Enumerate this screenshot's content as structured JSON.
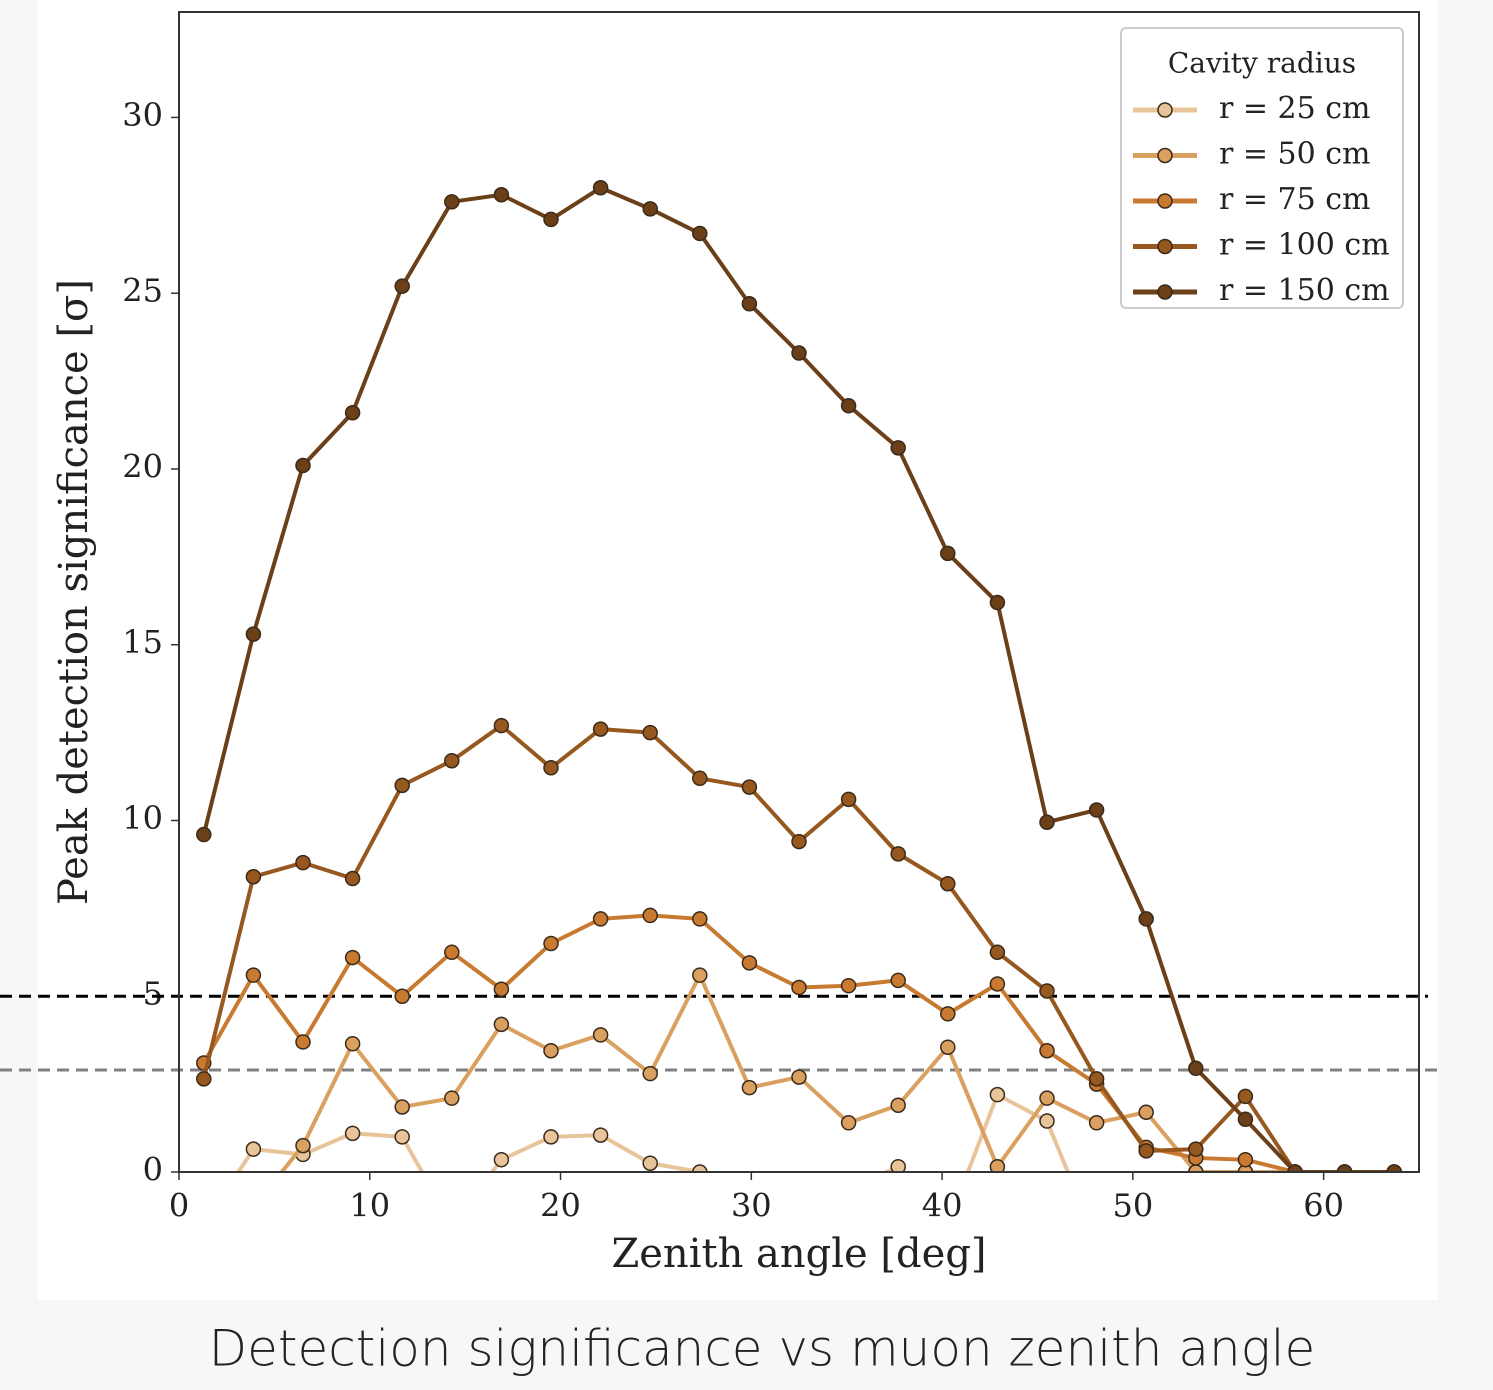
{
  "chart_data": {
    "type": "line",
    "caption": "Detection significance vs muon zenith angle",
    "xlabel": "Zenith angle [deg]",
    "ylabel": "Peak detection significance [σ]",
    "x": [
      1.3,
      3.9,
      6.5,
      9.1,
      11.7,
      14.3,
      16.9,
      19.5,
      22.1,
      24.7,
      27.3,
      29.9,
      32.5,
      35.1,
      37.7,
      40.3,
      42.9,
      45.5,
      48.1,
      50.7,
      53.3,
      55.9,
      58.5,
      61.1,
      63.7
    ],
    "series": [
      {
        "name": "r = 25 cm",
        "color": "#e8c49a",
        "values": [
          -1.5,
          0.65,
          0.5,
          1.1,
          1.0,
          -1.5,
          0.35,
          1.0,
          1.05,
          0.25,
          0.0,
          -0.5,
          -1.0,
          -0.5,
          0.15,
          -1.5,
          2.2,
          1.45,
          -2.0,
          -1.0,
          0.0,
          0.0,
          0.0,
          0.0,
          0.0
        ]
      },
      {
        "name": "r = 50 cm",
        "color": "#d9a060",
        "values": [
          -2.0,
          -1.0,
          0.75,
          3.65,
          1.85,
          2.1,
          4.2,
          3.45,
          3.9,
          2.8,
          5.6,
          2.4,
          2.7,
          1.4,
          1.9,
          3.55,
          0.15,
          2.1,
          1.4,
          1.7,
          0.0,
          0.0,
          0.0,
          0.0,
          0.0
        ]
      },
      {
        "name": "r = 75 cm",
        "color": "#c87a30",
        "values": [
          3.1,
          5.6,
          3.7,
          6.1,
          5.0,
          6.25,
          5.2,
          6.5,
          7.2,
          7.3,
          7.2,
          5.95,
          5.25,
          5.3,
          5.45,
          4.5,
          5.35,
          3.45,
          2.5,
          0.7,
          0.4,
          0.35,
          0.0,
          0.0,
          0.0
        ]
      },
      {
        "name": "r = 100 cm",
        "color": "#96581f",
        "values": [
          2.65,
          8.4,
          8.8,
          8.35,
          11.0,
          11.7,
          12.7,
          11.5,
          12.6,
          12.5,
          11.2,
          10.95,
          9.4,
          10.6,
          9.05,
          8.2,
          6.25,
          5.15,
          2.65,
          0.6,
          0.65,
          2.15,
          0.0,
          0.0,
          0.0
        ]
      },
      {
        "name": "r = 150 cm",
        "color": "#6b3f17",
        "values": [
          9.6,
          15.3,
          20.1,
          21.6,
          25.2,
          27.6,
          27.8,
          27.1,
          28.0,
          27.4,
          26.7,
          24.7,
          23.3,
          21.8,
          20.6,
          17.6,
          16.2,
          9.95,
          10.3,
          7.2,
          2.95,
          1.5,
          0.0,
          0.0,
          0.0
        ]
      }
    ],
    "hlines": [
      {
        "y": 5,
        "color": "#000000"
      },
      {
        "y": 2.9,
        "color": "#808080"
      }
    ],
    "xlim": [
      0,
      65
    ],
    "ylim": [
      0,
      33
    ],
    "xticks": [
      0,
      10,
      20,
      30,
      40,
      50,
      60
    ],
    "yticks": [
      0,
      5,
      10,
      15,
      20,
      25,
      30
    ],
    "legend": {
      "title": "Cavity radius",
      "loc": "upper right"
    }
  }
}
